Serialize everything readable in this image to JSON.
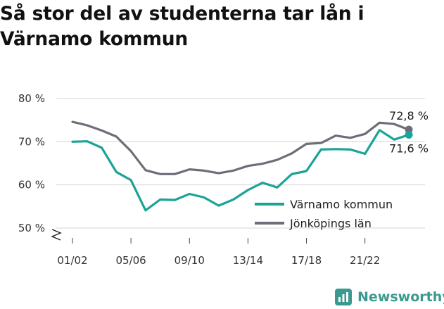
{
  "title": "Så stor del av studenterna tar lån i Värnamo kommun",
  "brand": {
    "name": "Newsworthy",
    "icon": "newsworthy-chart-icon"
  },
  "chart_data": {
    "type": "line",
    "x": [
      "01/02",
      "02/03",
      "03/04",
      "04/05",
      "05/06",
      "06/07",
      "07/08",
      "08/09",
      "09/10",
      "10/11",
      "11/12",
      "12/13",
      "13/14",
      "14/15",
      "15/16",
      "16/17",
      "17/18",
      "18/19",
      "19/20",
      "20/21",
      "21/22",
      "22/23",
      "23/24",
      "24/25"
    ],
    "x_tick_labels": [
      "01/02",
      "05/06",
      "09/10",
      "13/14",
      "17/18",
      "21/22"
    ],
    "y_ticks": [
      "50 %",
      "60 %",
      "70 %",
      "80 %"
    ],
    "ylim": [
      50,
      80
    ],
    "grid": "horizontal",
    "legend_position": "bottom-right",
    "series": [
      {
        "name": "Värnamo kommun",
        "color": "#1aa396",
        "values": [
          70.0,
          70.1,
          68.6,
          63.0,
          61.1,
          54.1,
          56.6,
          56.5,
          57.9,
          57.1,
          55.2,
          56.6,
          58.8,
          60.5,
          59.4,
          62.5,
          63.2,
          68.2,
          68.3,
          68.2,
          67.2,
          72.7,
          70.5,
          71.6
        ],
        "end_label": "71,6 %"
      },
      {
        "name": "Jönköpings län",
        "color": "#6e6e78",
        "values": [
          74.6,
          73.8,
          72.6,
          71.2,
          67.8,
          63.4,
          62.5,
          62.5,
          63.6,
          63.3,
          62.7,
          63.3,
          64.4,
          64.9,
          65.8,
          67.3,
          69.5,
          69.7,
          71.4,
          70.9,
          71.8,
          74.4,
          74.1,
          72.8
        ],
        "end_label": "72,8 %"
      }
    ]
  }
}
